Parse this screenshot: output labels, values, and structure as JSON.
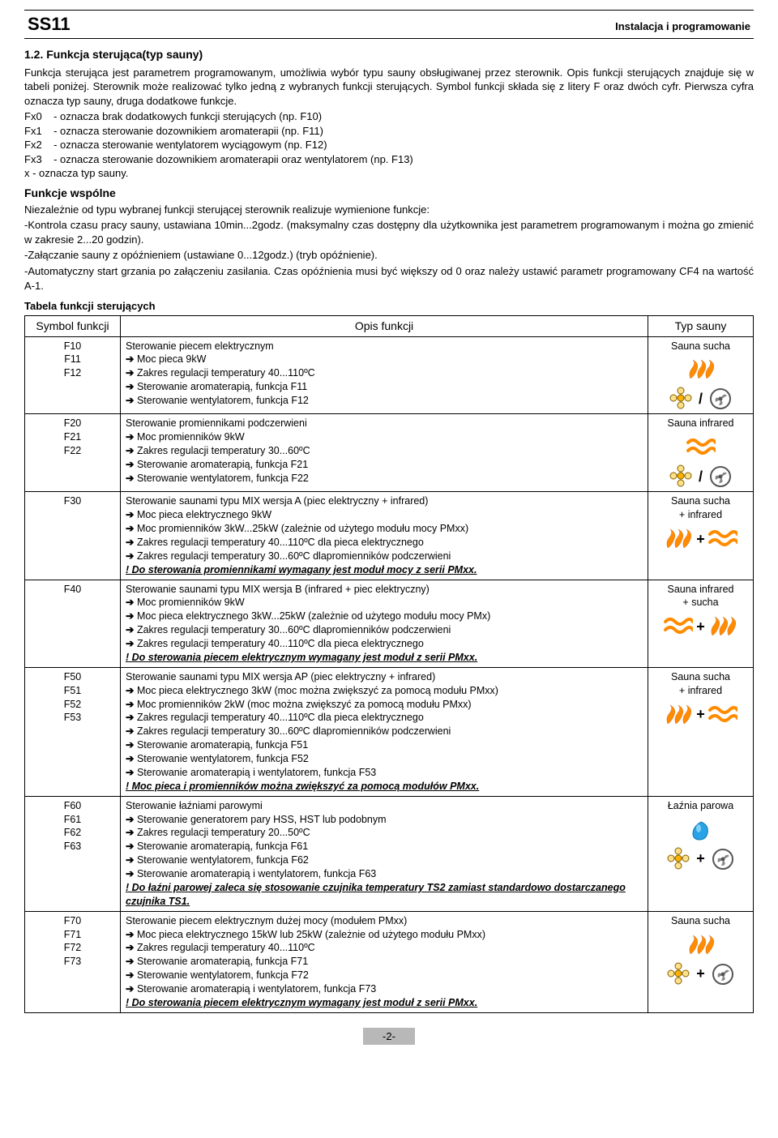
{
  "header": {
    "code": "SS11",
    "right": "Instalacja i programowanie"
  },
  "section": {
    "num_title": "1.2. Funkcja sterująca(typ sauny)",
    "para1": "Funkcja sterująca jest parametrem programowanym, umożliwia wybór typu sauny obsługiwanej przez sterownik. Opis funkcji sterujących znajduje się w tabeli poniżej. Sterownik może realizować tylko jedną z wybranych funkcji sterujących. Symbol funkcji składa się z litery F oraz dwóch cyfr. Pierwsza cyfra oznacza typ sauny, druga dodatkowe funkcje.",
    "fx0": "Fx0    - oznacza brak dodatkowych funkcji sterujących (np. F10)",
    "fx1": "Fx1    - oznacza sterowanie dozownikiem aromaterapii (np. F11)",
    "fx2": "Fx2    - oznacza sterowanie wentylatorem wyciągowym (np. F12)",
    "fx3": "Fx3    - oznacza sterowanie dozownikiem aromaterapii oraz wentylatorem (np. F13)",
    "xline": "x - oznacza typ sauny.",
    "shared_title": "Funkcje wspólne",
    "shared_intro": "Niezależnie od typu wybranej funkcji sterującej sterownik realizuje wymienione funkcje:",
    "shared_b1": "-Kontrola czasu pracy sauny, ustawiana 10min...2godz.  (maksymalny czas dostępny dla użytkownika jest parametrem programowanym i można go zmienić w zakresie 2...20 godzin).",
    "shared_b2": "-Załączanie sauny z opóźnieniem (ustawiane 0...12godz.) (tryb opóźnienie).",
    "shared_b3": "-Automatyczny start grzania po załączeniu zasilania. Czas opóźnienia musi być większy od 0 oraz należy ustawić parametr programowany CF4 na wartość A-1."
  },
  "table": {
    "title": "Tabela funkcji sterujących",
    "col1": "Symbol funkcji",
    "col2": "Opis funkcji",
    "col3": "Typ sauny",
    "rows": [
      {
        "sym": "F10\nF11\nF12",
        "title": "Sterowanie piecem elektrycznym",
        "items": [
          "Moc pieca 9kW",
          "Zakres regulacji temperatury 40...110ºC",
          "Sterowanie aromaterapią, funkcja F11",
          "Sterowanie wentylatorem, funkcja F12"
        ],
        "note": "",
        "type": "Sauna sucha",
        "iconset": "dry_slash"
      },
      {
        "sym": "F20\nF21\nF22",
        "title": "Sterowanie promiennikami podczerwieni",
        "items": [
          "Moc promienników 9kW",
          "Zakres regulacji temperatury 30...60ºC",
          "Sterowanie aromaterapią, funkcja F21",
          "Sterowanie wentylatorem, funkcja F22"
        ],
        "note": "",
        "type": "Sauna infrared",
        "iconset": "infra_slash"
      },
      {
        "sym": "F30",
        "title": "Sterowanie saunami typu MIX wersja A (piec elektryczny + infrared)",
        "items": [
          "Moc pieca elektrycznego 9kW",
          "Moc promienników 3kW...25kW (zależnie od użytego modułu mocy PMxx)",
          "Zakres regulacji temperatury 40...110ºC dla pieca elektrycznego",
          "Zakres regulacji temperatury 30...60ºC dlapromienników podczerwieni"
        ],
        "note": "! Do sterowania promiennikami wymagany jest moduł mocy z serii PMxx.",
        "type": "Sauna sucha\n+ infrared",
        "iconset": "dry_plus_infra"
      },
      {
        "sym": "F40",
        "title": "Sterowanie saunami typu MIX wersja B (infrared + piec elektryczny)",
        "items": [
          "Moc promienników 9kW",
          "Moc pieca elektrycznego 3kW...25kW (zależnie od użytego modułu mocy PMx)",
          "Zakres regulacji temperatury 30...60ºC dlapromienników podczerwieni",
          "Zakres regulacji temperatury 40...110ºC dla pieca elektrycznego"
        ],
        "note": "! Do sterowania piecem elektrycznym wymagany jest moduł z serii PMxx.",
        "type": "Sauna infrared\n+ sucha",
        "iconset": "infra_plus_dry"
      },
      {
        "sym": "F50\nF51\nF52\nF53",
        "title": "Sterowanie saunami typu MIX wersja AP (piec elektryczny + infrared)",
        "items": [
          "Moc pieca elektrycznego 3kW (moc można zwiększyć za pomocą modułu PMxx)",
          "Moc promienników 2kW (moc można zwiększyć za pomocą modułu PMxx)",
          "Zakres regulacji temperatury 40...110ºC dla pieca elektrycznego",
          "Zakres regulacji temperatury 30...60ºC dlapromienników podczerwieni",
          "Sterowanie aromaterapią, funkcja F51",
          "Sterowanie wentylatorem, funkcja F52",
          "Sterowanie aromaterapią i wentylatorem, funkcja F53"
        ],
        "note": "! Moc pieca i promienników można zwiększyć za pomocą modułów PMxx.",
        "type": "Sauna sucha\n+ infrared",
        "iconset": "dry_plus_infra"
      },
      {
        "sym": "F60\nF61\nF62\nF63",
        "title": "Sterowanie łaźniami parowymi",
        "items": [
          "Sterowanie generatorem pary HSS, HST lub podobnym",
          "Zakres regulacji temperatury 20...50ºC",
          "Sterowanie aromaterapią, funkcja F61",
          "Sterowanie wentylatorem, funkcja F62",
          "Sterowanie aromaterapią i wentylatorem, funkcja F63"
        ],
        "note": "! Do łaźni parowej zaleca się stosowanie czujnika temperatury TS2 zamiast standardowo dostarczanego czujnika TS1.",
        "type": "Łaźnia parowa",
        "iconset": "steam"
      },
      {
        "sym": "F70\nF71\nF72\nF73",
        "title": "Sterowanie piecem elektrycznym dużej mocy (modułem PMxx)",
        "items": [
          "Moc pieca elektrycznego 15kW lub 25kW (zależnie od użytego modułu PMxx)",
          "Zakres regulacji temperatury 40...110ºC",
          "Sterowanie aromaterapią, funkcja F71",
          "Sterowanie wentylatorem, funkcja F72",
          "Sterowanie aromaterapią i wentylatorem, funkcja F73"
        ],
        "note": "! Do sterowania piecem elektrycznym wymagany jest moduł z serii PMxx.",
        "type": "Sauna sucha",
        "iconset": "dry_plus_fan"
      }
    ]
  },
  "page": "-2-"
}
